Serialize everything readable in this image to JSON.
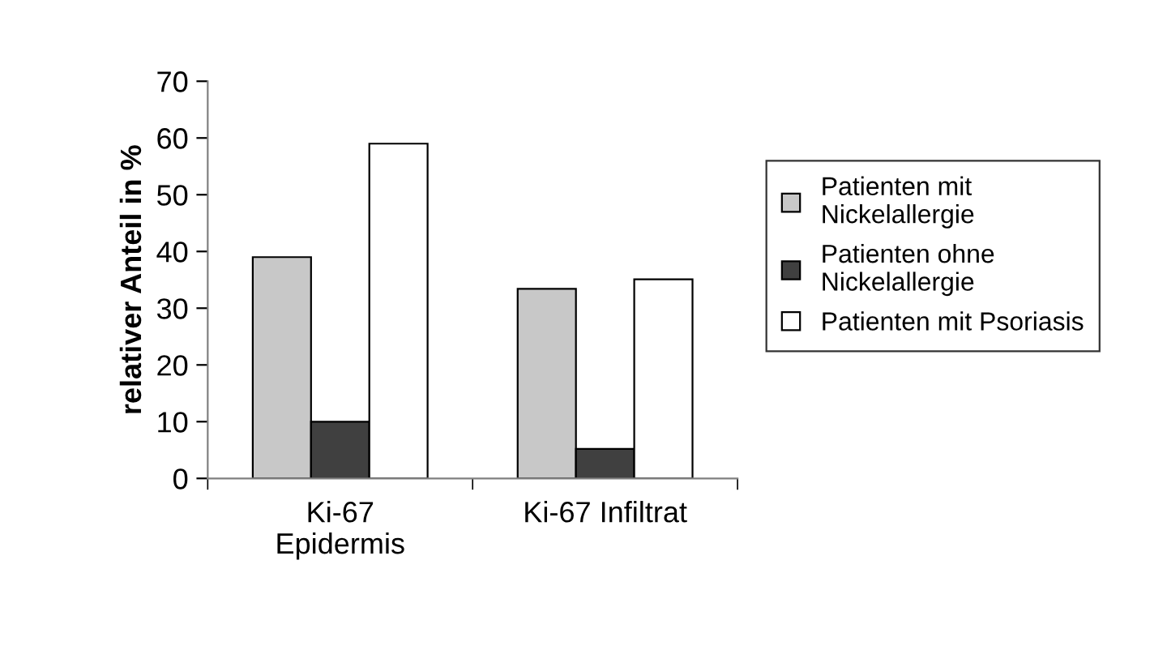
{
  "chart_data": {
    "type": "bar",
    "ylabel": "relativer Anteil in %",
    "categories": [
      "Ki-67\nEpidermis",
      "Ki-67 Infiltrat"
    ],
    "series": [
      {
        "name": "Patienten mit\nNickelallergie",
        "color": "#c8c8c8",
        "values": [
          39,
          33.4
        ]
      },
      {
        "name": "Patienten ohne\nNickelallergie",
        "color": "#404040",
        "values": [
          10,
          5.2
        ]
      },
      {
        "name": "Patienten mit Psoriasis",
        "color": "#ffffff",
        "values": [
          59,
          35.1
        ]
      }
    ],
    "ylim": [
      0,
      70
    ],
    "yticks": [
      0,
      10,
      20,
      30,
      40,
      50,
      60,
      70
    ],
    "grid": false,
    "legend": "right"
  }
}
